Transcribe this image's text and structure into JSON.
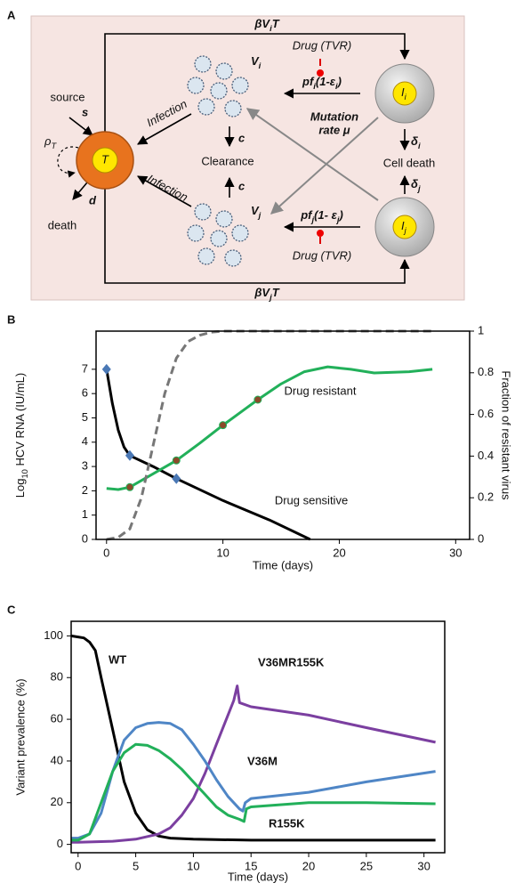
{
  "diagram": {
    "panel_label": "A",
    "top_rate": [
      "βV",
      "i",
      "T"
    ],
    "bottom_rate": [
      "βV",
      "j",
      "T"
    ],
    "drug_top": "Drug (TVR)",
    "drug_bottom": "Drug (TVR)",
    "virus_i": [
      "V",
      "i"
    ],
    "virus_j": [
      "V",
      "j"
    ],
    "prod_i": [
      "pf",
      "i",
      "(1-ε",
      "i",
      ")"
    ],
    "prod_j": [
      "pf",
      "j",
      "(1- ε",
      "j",
      ")"
    ],
    "mutation": "Mutation",
    "mutation_rate": "rate μ",
    "cell_i": [
      "I",
      "i"
    ],
    "cell_j": [
      "I",
      "j"
    ],
    "death_i": [
      "δ",
      "i"
    ],
    "death_j": [
      "δ",
      "j"
    ],
    "cell_death": "Cell death",
    "infection_top": "Infection",
    "infection_bottom": "Infection",
    "clearance_rate_top": "c",
    "clearance": "Clearance",
    "clearance_rate_bottom": "c",
    "source": "source",
    "source_rate": "s",
    "proliferation": [
      "ρ",
      "T"
    ],
    "target": "T",
    "death_rate": "d",
    "death": "death"
  },
  "chart_data": [
    {
      "type": "line",
      "panel_label": "B",
      "xlabel": "Time (days)",
      "ylabel": [
        "Log",
        "10",
        " HCV RNA (IU/mL)"
      ],
      "y2label": "Fraction of resistant virus",
      "xlim": [
        -0.9,
        31.2
      ],
      "xticks": [
        0,
        10,
        20,
        30
      ],
      "ylim": [
        0,
        8.57
      ],
      "yticks": [
        0,
        1,
        2,
        3,
        4,
        5,
        6,
        7
      ],
      "y2lim": [
        0,
        1
      ],
      "y2ticks": [
        0,
        0.2,
        0.4,
        0.6,
        0.8,
        1
      ],
      "series": [
        {
          "name": "Drug sensitive",
          "color": "#000000",
          "x": [
            0,
            0.5,
            1,
            1.5,
            2,
            4,
            6,
            10,
            14,
            17.5
          ],
          "values": [
            7,
            5.6,
            4.5,
            3.8,
            3.45,
            3.0,
            2.5,
            1.6,
            0.8,
            0
          ]
        },
        {
          "name": "Drug resistant",
          "color": "#22b05a",
          "x": [
            0,
            1,
            2,
            4,
            6,
            8,
            10,
            12,
            13,
            15,
            17,
            19,
            21,
            23,
            26,
            28
          ],
          "values": [
            2.1,
            2.05,
            2.15,
            2.7,
            3.25,
            3.95,
            4.7,
            5.4,
            5.75,
            6.4,
            6.9,
            7.1,
            7.0,
            6.85,
            6.9,
            7.0
          ]
        },
        {
          "color": "#777777",
          "axis": "y2",
          "line_style": "dashed",
          "x": [
            0,
            1,
            2,
            3,
            4,
            5,
            6,
            7,
            8,
            9,
            10,
            28
          ],
          "values": [
            0,
            0.01,
            0.05,
            0.2,
            0.45,
            0.7,
            0.87,
            0.95,
            0.98,
            0.995,
            1,
            1
          ]
        },
        {
          "color": "#4a78b5",
          "marker": "diamond",
          "x": [
            0,
            2,
            6
          ],
          "values": [
            7,
            3.45,
            2.5
          ]
        },
        {
          "color": "#8b4a2a",
          "marker": "circle",
          "x": [
            2,
            6,
            10,
            13
          ],
          "values": [
            2.15,
            3.25,
            4.7,
            5.75
          ]
        }
      ]
    },
    {
      "type": "line",
      "panel_label": "C",
      "xlabel": "Time (days)",
      "ylabel": "Variant prevalence (%)",
      "xlim": [
        -0.6,
        31.8
      ],
      "xticks": [
        0,
        5,
        10,
        15,
        20,
        25,
        30
      ],
      "ylim": [
        -4,
        107
      ],
      "yticks": [
        0,
        20,
        40,
        60,
        80,
        100
      ],
      "series": [
        {
          "name": "WT",
          "color": "#000000",
          "x": [
            -0.6,
            0,
            0.5,
            1,
            1.5,
            2,
            3,
            4,
            5,
            6,
            7,
            8,
            10,
            15,
            31
          ],
          "values": [
            100,
            99.5,
            99,
            97,
            93,
            80,
            55,
            30,
            15,
            7,
            4,
            3,
            2.5,
            2,
            2
          ]
        },
        {
          "name": "V36MR155K",
          "color": "#7b3fa0",
          "x": [
            -0.6,
            0,
            3,
            5,
            7,
            8,
            9,
            10,
            11,
            12,
            13,
            13.5,
            13.8,
            14,
            15,
            20,
            25,
            31
          ],
          "values": [
            1,
            1,
            1.5,
            2.5,
            5,
            8,
            14,
            22,
            34,
            48,
            62,
            69,
            76,
            68,
            66,
            62,
            56,
            49
          ]
        },
        {
          "name": "V36M",
          "color": "#4f86c6",
          "x": [
            -0.6,
            0,
            1,
            2,
            3,
            4,
            5,
            6,
            7,
            8,
            9,
            10,
            11,
            12,
            13,
            14,
            14.3,
            14.5,
            15,
            20,
            25,
            31
          ],
          "values": [
            3,
            3,
            5,
            15,
            35,
            50,
            56,
            58,
            58.5,
            58,
            55,
            48,
            40,
            31,
            23,
            17,
            16,
            20,
            22,
            25,
            30,
            35
          ]
        },
        {
          "name": "R155K",
          "color": "#22b05a",
          "x": [
            -0.6,
            0,
            1,
            2,
            3,
            4,
            5,
            6,
            7,
            8,
            9,
            10,
            11,
            12,
            13,
            14,
            14.4,
            14.6,
            15,
            20,
            25,
            31
          ],
          "values": [
            2,
            2,
            5,
            20,
            35,
            44,
            48,
            47.5,
            45,
            41,
            36,
            30,
            24,
            18,
            14,
            12,
            11,
            17,
            18,
            20,
            20,
            19.5
          ]
        }
      ]
    }
  ]
}
